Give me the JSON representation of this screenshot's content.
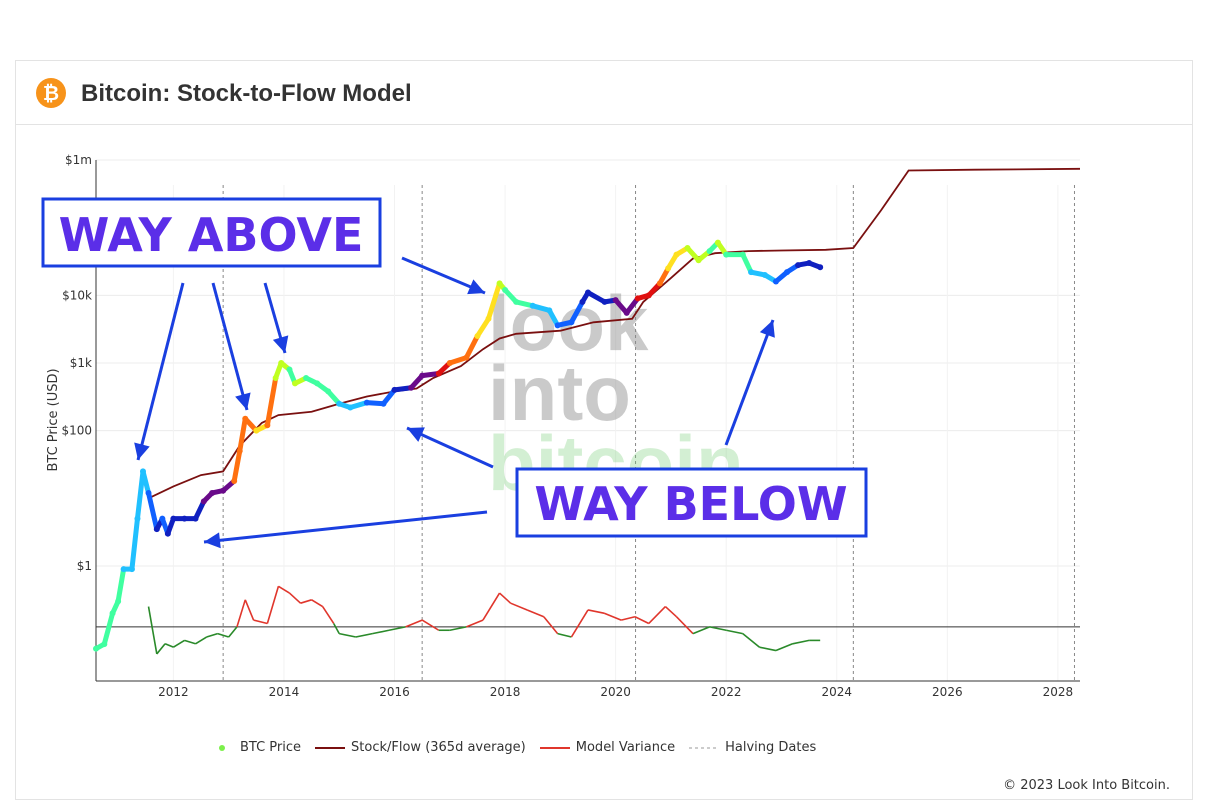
{
  "header": {
    "title": "Bitcoin: Stock-to-Flow Model",
    "logo_icon": "bitcoin-icon",
    "logo_glyph": "₿"
  },
  "annotations": {
    "above": "WAY ABOVE",
    "below": "WAY BELOW",
    "color": "#5b2ee8",
    "border": "#1a3fe0"
  },
  "watermark": [
    "look",
    "into",
    "bitcoin"
  ],
  "copyright": "© 2023 Look Into Bitcoin.",
  "legend": [
    {
      "label": "BTC Price",
      "kind": "dot",
      "color": "#7cf04b"
    },
    {
      "label": "Stock/Flow (365d average)",
      "kind": "line",
      "color": "#7a1010"
    },
    {
      "label": "Model Variance",
      "kind": "line",
      "color": "#e0362c"
    },
    {
      "label": "Halving Dates",
      "kind": "dash",
      "color": "#999999"
    }
  ],
  "chart_data": {
    "type": "line",
    "title": "Bitcoin: Stock-to-Flow Model",
    "ylabel": "BTC Price (USD)",
    "xlabel": "",
    "xlim": [
      2010.6,
      2028.4
    ],
    "y_scale": "log",
    "ylim_log10": [
      -1.7,
      6.0
    ],
    "x_ticks": [
      2012,
      2014,
      2016,
      2018,
      2020,
      2022,
      2024,
      2026,
      2028
    ],
    "y_ticks": [
      {
        "value": 1,
        "label": "$1"
      },
      {
        "value": 100,
        "label": "$100"
      },
      {
        "value": 1000,
        "label": "$1k"
      },
      {
        "value": 10000,
        "label": "$10k"
      },
      {
        "value": 1000000,
        "label": "$1m"
      }
    ],
    "halving_dates": [
      2012.9,
      2016.5,
      2020.36,
      2024.3,
      2028.3
    ],
    "series": [
      {
        "name": "BTC Price",
        "color_scale": [
          "#1020c0",
          "#1060ff",
          "#20c0ff",
          "#40ffa0",
          "#c0ff20",
          "#ffe020",
          "#ff7010",
          "#e01010",
          "#6a0a8a"
        ],
        "points": [
          [
            2010.6,
            0.06,
            3
          ],
          [
            2010.75,
            0.07,
            3
          ],
          [
            2010.9,
            0.2,
            3
          ],
          [
            2011.0,
            0.3,
            3
          ],
          [
            2011.1,
            0.9,
            2
          ],
          [
            2011.25,
            0.9,
            2
          ],
          [
            2011.35,
            5,
            2
          ],
          [
            2011.45,
            25,
            2
          ],
          [
            2011.55,
            12,
            1
          ],
          [
            2011.7,
            3.5,
            0
          ],
          [
            2011.8,
            5,
            1
          ],
          [
            2011.9,
            3,
            0
          ],
          [
            2012.0,
            5,
            0
          ],
          [
            2012.2,
            5,
            0
          ],
          [
            2012.4,
            5,
            0
          ],
          [
            2012.55,
            9,
            8
          ],
          [
            2012.7,
            12,
            8
          ],
          [
            2012.9,
            13,
            8
          ],
          [
            2013.1,
            18,
            6
          ],
          [
            2013.2,
            50,
            6
          ],
          [
            2013.3,
            150,
            6
          ],
          [
            2013.5,
            100,
            5
          ],
          [
            2013.7,
            120,
            6
          ],
          [
            2013.85,
            600,
            4
          ],
          [
            2013.95,
            1000,
            4
          ],
          [
            2014.1,
            800,
            3
          ],
          [
            2014.2,
            500,
            4
          ],
          [
            2014.4,
            600,
            3
          ],
          [
            2014.6,
            500,
            3
          ],
          [
            2014.8,
            380,
            3
          ],
          [
            2015.0,
            250,
            2
          ],
          [
            2015.2,
            220,
            2
          ],
          [
            2015.5,
            260,
            1
          ],
          [
            2015.8,
            250,
            1
          ],
          [
            2016.0,
            400,
            0
          ],
          [
            2016.3,
            430,
            8
          ],
          [
            2016.5,
            650,
            8
          ],
          [
            2016.8,
            700,
            7
          ],
          [
            2017.0,
            1000,
            6
          ],
          [
            2017.3,
            1200,
            6
          ],
          [
            2017.5,
            2500,
            5
          ],
          [
            2017.7,
            4500,
            5
          ],
          [
            2017.9,
            15000,
            4
          ],
          [
            2018.0,
            12000,
            3
          ],
          [
            2018.2,
            8000,
            3
          ],
          [
            2018.5,
            7000,
            2
          ],
          [
            2018.8,
            6000,
            2
          ],
          [
            2018.95,
            3600,
            1
          ],
          [
            2019.2,
            4000,
            1
          ],
          [
            2019.4,
            8000,
            0
          ],
          [
            2019.5,
            11000,
            0
          ],
          [
            2019.8,
            8000,
            0
          ],
          [
            2020.0,
            8500,
            8
          ],
          [
            2020.2,
            5500,
            8
          ],
          [
            2020.4,
            9000,
            7
          ],
          [
            2020.6,
            10000,
            7
          ],
          [
            2020.8,
            15000,
            6
          ],
          [
            2020.95,
            25000,
            5
          ],
          [
            2021.1,
            40000,
            5
          ],
          [
            2021.3,
            50000,
            4
          ],
          [
            2021.5,
            33000,
            4
          ],
          [
            2021.7,
            45000,
            3
          ],
          [
            2021.85,
            60000,
            4
          ],
          [
            2022.0,
            40000,
            3
          ],
          [
            2022.3,
            40000,
            3
          ],
          [
            2022.45,
            22000,
            2
          ],
          [
            2022.7,
            20000,
            2
          ],
          [
            2022.9,
            16000,
            1
          ],
          [
            2023.1,
            22000,
            1
          ],
          [
            2023.3,
            28000,
            0
          ],
          [
            2023.5,
            30000,
            0
          ],
          [
            2023.7,
            26000,
            0
          ]
        ]
      },
      {
        "name": "Stock/Flow (365d average)",
        "color": "#7a1010",
        "points": [
          [
            2011.55,
            10
          ],
          [
            2012.0,
            15
          ],
          [
            2012.5,
            22
          ],
          [
            2012.9,
            25
          ],
          [
            2013.2,
            60
          ],
          [
            2013.6,
            130
          ],
          [
            2013.9,
            170
          ],
          [
            2014.5,
            190
          ],
          [
            2015.0,
            250
          ],
          [
            2015.5,
            320
          ],
          [
            2016.0,
            380
          ],
          [
            2016.4,
            420
          ],
          [
            2016.7,
            600
          ],
          [
            2017.2,
            900
          ],
          [
            2017.6,
            1600
          ],
          [
            2017.9,
            2300
          ],
          [
            2018.2,
            2700
          ],
          [
            2019.0,
            3000
          ],
          [
            2019.6,
            4000
          ],
          [
            2020.3,
            4500
          ],
          [
            2020.5,
            8000
          ],
          [
            2021.0,
            18000
          ],
          [
            2021.4,
            35000
          ],
          [
            2021.8,
            42000
          ],
          [
            2022.4,
            45000
          ],
          [
            2023.0,
            46000
          ],
          [
            2023.8,
            47000
          ],
          [
            2024.3,
            50000
          ],
          [
            2024.8,
            180000
          ],
          [
            2025.3,
            700000
          ],
          [
            2026.5,
            720000
          ],
          [
            2028.4,
            740000
          ]
        ]
      },
      {
        "name": "Model Variance",
        "color_above": "#e0362c",
        "color_below": "#2a8a2a",
        "baseline_log10": -0.9,
        "points": [
          [
            2011.55,
            -0.6
          ],
          [
            2011.7,
            -1.3
          ],
          [
            2011.85,
            -1.15
          ],
          [
            2012.0,
            -1.2
          ],
          [
            2012.2,
            -1.1
          ],
          [
            2012.4,
            -1.15
          ],
          [
            2012.6,
            -1.05
          ],
          [
            2012.8,
            -1.0
          ],
          [
            2013.0,
            -1.05
          ],
          [
            2013.15,
            -0.9
          ],
          [
            2013.3,
            -0.5
          ],
          [
            2013.45,
            -0.8
          ],
          [
            2013.7,
            -0.85
          ],
          [
            2013.9,
            -0.3
          ],
          [
            2014.1,
            -0.4
          ],
          [
            2014.3,
            -0.55
          ],
          [
            2014.5,
            -0.5
          ],
          [
            2014.7,
            -0.6
          ],
          [
            2014.9,
            -0.85
          ],
          [
            2015.0,
            -1.0
          ],
          [
            2015.3,
            -1.05
          ],
          [
            2015.6,
            -1.0
          ],
          [
            2015.9,
            -0.95
          ],
          [
            2016.2,
            -0.9
          ],
          [
            2016.5,
            -0.8
          ],
          [
            2016.8,
            -0.95
          ],
          [
            2017.0,
            -0.95
          ],
          [
            2017.3,
            -0.9
          ],
          [
            2017.6,
            -0.8
          ],
          [
            2017.9,
            -0.4
          ],
          [
            2018.1,
            -0.55
          ],
          [
            2018.4,
            -0.65
          ],
          [
            2018.7,
            -0.75
          ],
          [
            2018.95,
            -1.0
          ],
          [
            2019.2,
            -1.05
          ],
          [
            2019.5,
            -0.65
          ],
          [
            2019.8,
            -0.7
          ],
          [
            2020.1,
            -0.8
          ],
          [
            2020.35,
            -0.75
          ],
          [
            2020.6,
            -0.85
          ],
          [
            2020.9,
            -0.6
          ],
          [
            2021.1,
            -0.75
          ],
          [
            2021.4,
            -1.0
          ],
          [
            2021.7,
            -0.9
          ],
          [
            2022.0,
            -0.95
          ],
          [
            2022.3,
            -1.0
          ],
          [
            2022.6,
            -1.2
          ],
          [
            2022.9,
            -1.25
          ],
          [
            2023.2,
            -1.15
          ],
          [
            2023.5,
            -1.1
          ],
          [
            2023.7,
            -1.1
          ]
        ]
      }
    ]
  }
}
